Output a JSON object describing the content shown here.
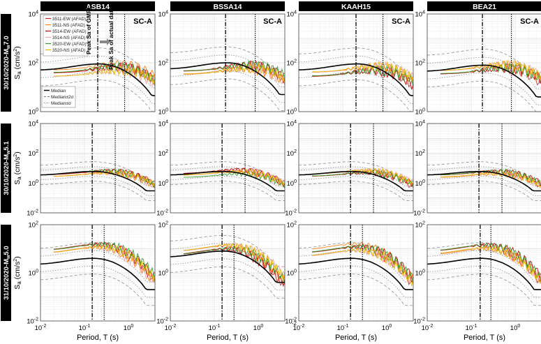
{
  "chart_data": {
    "type": "line",
    "columns": [
      "ASB14",
      "BSSA14",
      "KAAH15",
      "BEA21"
    ],
    "rows": [
      {
        "label": "30/10/2020-Mw7.0",
        "label_main": "30/10/2020-M",
        "label_sub": "w",
        "label_end": "7.0",
        "ylim_exp": [
          0,
          4
        ],
        "ytick_exps": [
          0,
          2,
          4
        ],
        "peak_gmpe": [
          0.2,
          0.18,
          0.2,
          0.18
        ],
        "peak_actual": [
          0.82,
          0.85,
          0.82,
          0.82
        ],
        "medians": [
          90,
          100,
          90,
          80
        ],
        "data_peak": 120
      },
      {
        "label": "30/10/2020-Mw5.1",
        "label_main": "30/10/2020-M",
        "label_sub": "w",
        "label_end": "5.1",
        "ylim_exp": [
          -2,
          4
        ],
        "ytick_exps": [
          -2,
          0,
          2,
          4
        ],
        "peak_gmpe": [
          0.15,
          0.15,
          0.15,
          0.15
        ],
        "peak_actual": [
          0.5,
          0.5,
          0.5,
          0.5
        ],
        "medians": [
          6,
          6,
          6,
          6
        ],
        "data_peak": 10
      },
      {
        "label": "31/10/2020-Mw5.0",
        "label_main": "31/10/2020-M",
        "label_sub": "w",
        "label_end": "5.0",
        "ylim_exp": [
          -2,
          2
        ],
        "ytick_exps": [
          -2,
          0,
          2
        ],
        "peak_gmpe": [
          0.15,
          0.15,
          0.15,
          0.16
        ],
        "peak_actual": [
          0.28,
          0.28,
          0.28,
          0.28
        ],
        "medians": [
          4,
          8,
          4,
          4
        ],
        "data_peak": 20
      }
    ],
    "xlim": [
      0.01,
      4
    ],
    "x_ticks": [
      "10^-2",
      "10^-1",
      "10^0"
    ],
    "xlabel": "Period, T (s)",
    "ylabel": "Sa (cm/s2)",
    "ylabel_main": "S",
    "ylabel_sub": "a",
    "ylabel_unit": " (cm/s",
    "ylabel_sup": "2",
    "ylabel_close": ")",
    "site_class": "SC-A",
    "legend_records": [
      {
        "name": "3511-EW (AFAD)",
        "color": "#d62728"
      },
      {
        "name": "3511-NS (AFAD)",
        "color": "#ff7f0e"
      },
      {
        "name": "3514-EW (AFAD)",
        "color": "#c00000"
      },
      {
        "name": "3514-NS (AFAD)",
        "color": "#f4a6a6"
      },
      {
        "name": "3520-EW (AFAD)",
        "color": "#2ca02c"
      },
      {
        "name": "3520-NS (AFAD)",
        "color": "#e6b800"
      }
    ],
    "legend_median": [
      {
        "name": "Median",
        "style": "solid"
      },
      {
        "name": "Median±2σ",
        "style": "dashed"
      },
      {
        "name": "Median±σ",
        "style": "dotted"
      }
    ],
    "annotations": {
      "peak_gmpe": "Peak Sa of GMPE",
      "peak_actual": "Peak Sa of actual data"
    },
    "stray_label": "-2"
  }
}
